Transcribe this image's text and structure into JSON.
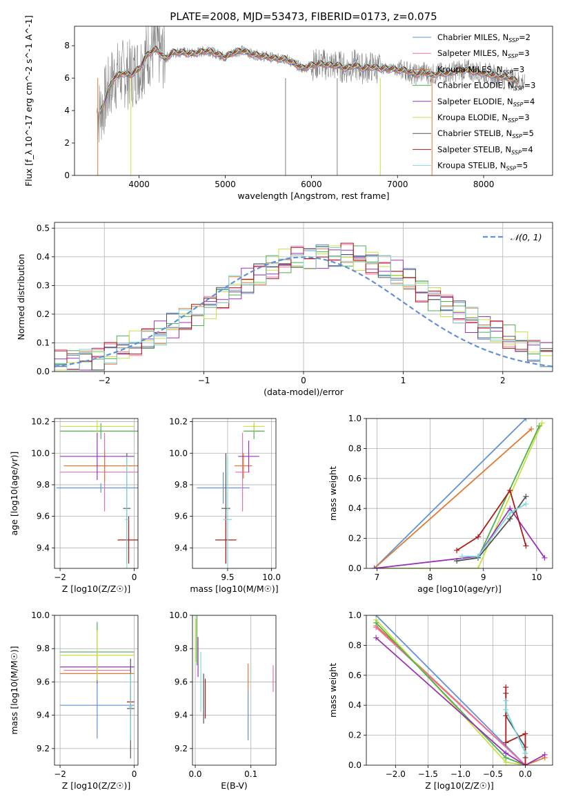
{
  "figure_title": "PLATE=2008, MJD=53473, FIBERID=0173, z=0.075",
  "colors": {
    "grey": "#808080",
    "orange": "#e07830",
    "pink": "#f06ea8",
    "green": "#4caf50",
    "purple": "#9a32b8",
    "yellow": "#c8e040",
    "darkgrey": "#555555",
    "red": "#b01818",
    "cyan": "#7dd8e0",
    "blue": "#6090d8"
  },
  "chart_data": [
    {
      "id": "spectrum",
      "type": "line",
      "xlabel": "wavelength [Angstrom, rest frame]",
      "ylabel": "Flux [f_λ 10^-17 erg cm^-2 s^-1 A^-1]",
      "xlim": [
        3250,
        8800
      ],
      "ylim": [
        0,
        9.2
      ],
      "xticks": [
        4000,
        5000,
        6000,
        7000,
        8000
      ],
      "yticks": [
        0,
        2,
        4,
        6,
        8
      ],
      "legend_position": "upper-right",
      "model_points_x": [
        3550,
        3600,
        3700,
        3800,
        3900,
        4000,
        4100,
        4200,
        4300,
        4400,
        4500,
        4600,
        4700,
        4800,
        4900,
        5000,
        5100,
        5200,
        5300,
        5400,
        5500,
        5600,
        5700,
        5800,
        5900,
        6000,
        6100,
        6200,
        6300,
        6400,
        6500,
        6600,
        6700,
        6800,
        6900,
        7000,
        7100,
        7200,
        7300,
        7400,
        7500,
        7600,
        7700,
        7800,
        7900,
        8000,
        8100,
        8200,
        8300,
        8400
      ],
      "model_points_y": [
        3.9,
        4.6,
        6.0,
        6.3,
        6.2,
        6.6,
        7.5,
        7.8,
        7.2,
        7.6,
        7.6,
        7.5,
        7.6,
        7.7,
        7.5,
        7.3,
        7.6,
        7.7,
        7.5,
        7.4,
        7.3,
        7.2,
        7.2,
        6.9,
        6.6,
        6.8,
        6.9,
        6.8,
        6.8,
        6.6,
        6.8,
        6.6,
        6.7,
        6.6,
        6.6,
        6.5,
        6.5,
        6.2,
        6.4,
        6.2,
        6.3,
        6.3,
        6.5,
        6.5,
        6.4,
        6.3,
        6.2,
        6.1,
        6.0,
        5.8
      ],
      "series": [
        {
          "name": "Chabrier MILES, N_SSP=2",
          "color": "#6090d8"
        },
        {
          "name": "Salpeter MILES, N_SSP=3",
          "color": "#f06ea8"
        },
        {
          "name": "Kroupa MILES, N_SSP=3",
          "color": "#e07830"
        },
        {
          "name": "Chabrier ELODIE, N_SSP=3",
          "color": "#4caf50"
        },
        {
          "name": "Salpeter ELODIE, N_SSP=4",
          "color": "#9a32b8"
        },
        {
          "name": "Kroupa ELODIE, N_SSP=3",
          "color": "#c8e040"
        },
        {
          "name": "Chabrier STELIB, N_SSP=5",
          "color": "#555555"
        },
        {
          "name": "Salpeter STELIB, N_SSP=4",
          "color": "#b01818"
        },
        {
          "name": "Kroupa STELIB, N_SSP=5",
          "color": "#7dd8e0"
        }
      ],
      "legend": [
        {
          "label": "Chabrier MILES, N",
          "sub": "SSP",
          "tail": "=2"
        },
        {
          "label": "Salpeter MILES, N",
          "sub": "SSP",
          "tail": "=3"
        },
        {
          "label": "Kroupa MILES, N",
          "sub": "SSP",
          "tail": "=3"
        },
        {
          "label": "Chabrier ELODIE, N",
          "sub": "SSP",
          "tail": "=3"
        },
        {
          "label": "Salpeter ELODIE, N",
          "sub": "SSP",
          "tail": "=4"
        },
        {
          "label": "Kroupa ELODIE, N",
          "sub": "SSP",
          "tail": "=3"
        },
        {
          "label": "Chabrier STELIB, N",
          "sub": "SSP",
          "tail": "=5"
        },
        {
          "label": "Salpeter STELIB, N",
          "sub": "SSP",
          "tail": "=4"
        },
        {
          "label": "Kroupa STELIB, N",
          "sub": "SSP",
          "tail": "=5"
        }
      ]
    },
    {
      "id": "residuals",
      "type": "histogram",
      "xlabel": "(data-model)/error",
      "ylabel": "Normed distribution",
      "xlim": [
        -2.5,
        2.5
      ],
      "ylim": [
        0,
        0.52
      ],
      "xticks": [
        -2,
        -1,
        0,
        1,
        2
      ],
      "yticks": [
        0.0,
        0.1,
        0.2,
        0.3,
        0.4,
        0.5
      ],
      "grid": true,
      "normal_curve_label": "𝒩(0, 1)",
      "bin_centers": [
        -2.4,
        -2.2,
        -2.0,
        -1.8,
        -1.6,
        -1.4,
        -1.2,
        -1.0,
        -0.8,
        -0.6,
        -0.4,
        -0.2,
        0.0,
        0.2,
        0.4,
        0.6,
        0.8,
        1.0,
        1.2,
        1.4,
        1.6,
        1.8,
        2.0,
        2.2,
        2.4
      ],
      "bin_values": [
        0.02,
        0.035,
        0.04,
        0.055,
        0.075,
        0.1,
        0.14,
        0.2,
        0.26,
        0.3,
        0.34,
        0.37,
        0.4,
        0.42,
        0.41,
        0.38,
        0.34,
        0.29,
        0.24,
        0.19,
        0.15,
        0.11,
        0.08,
        0.06,
        0.045
      ]
    },
    {
      "id": "age-vs-Z",
      "type": "errorbar",
      "xlabel": "Z [log10(Z/Z☉)]",
      "ylabel": "age [log10(age/yr)]",
      "xlim": [
        -2.15,
        0.1
      ],
      "ylim": [
        9.27,
        10.22
      ],
      "xticks": [
        -2,
        0
      ],
      "yticks": [
        9.4,
        9.6,
        9.8,
        10.0,
        10.2
      ],
      "points": [
        {
          "x": -0.9,
          "y": 9.78,
          "xerr": 1.2,
          "yerr": 0.03,
          "color": "#6090d8"
        },
        {
          "x": -0.8,
          "y": 9.88,
          "xerr": 1.2,
          "yerr": 0.25,
          "color": "#f06ea8"
        },
        {
          "x": -0.8,
          "y": 9.92,
          "xerr": 1.1,
          "yerr": 0.1,
          "color": "#e07830"
        },
        {
          "x": -1.0,
          "y": 9.98,
          "xerr": 1.0,
          "yerr": 0.15,
          "color": "#9a32b8"
        },
        {
          "x": -0.9,
          "y": 10.14,
          "xerr": 1.1,
          "yerr": 0.05,
          "color": "#4caf50"
        },
        {
          "x": -1.0,
          "y": 10.17,
          "xerr": 1.0,
          "yerr": 0.04,
          "color": "#c8e040"
        },
        {
          "x": -0.2,
          "y": 9.65,
          "xerr": 0.1,
          "yerr": 0.35,
          "color": "#555555"
        },
        {
          "x": -0.15,
          "y": 9.45,
          "xerr": 0.3,
          "yerr": 0.15,
          "color": "#b01818"
        },
        {
          "x": -0.2,
          "y": 9.58,
          "xerr": 0.05,
          "yerr": 0.4,
          "color": "#7dd8e0"
        }
      ]
    },
    {
      "id": "age-vs-mass",
      "type": "errorbar",
      "xlabel": "mass [log10(M/M☉)]",
      "ylabel": "",
      "xlim": [
        9.1,
        10.05
      ],
      "ylim": [
        9.27,
        10.22
      ],
      "xticks": [
        9.5,
        10.0
      ],
      "yticks": [
        9.4,
        9.6,
        9.8,
        10.0,
        10.2
      ],
      "points": [
        {
          "x": 9.45,
          "y": 9.78,
          "xerr": 0.3,
          "yerr": 0.1,
          "color": "#6090d8"
        },
        {
          "x": 9.67,
          "y": 9.88,
          "xerr": 0.08,
          "yerr": 0.25,
          "color": "#f06ea8"
        },
        {
          "x": 9.68,
          "y": 9.92,
          "xerr": 0.1,
          "yerr": 0.08,
          "color": "#e07830"
        },
        {
          "x": 9.74,
          "y": 9.98,
          "xerr": 0.12,
          "yerr": 0.1,
          "color": "#9a32b8"
        },
        {
          "x": 9.8,
          "y": 10.14,
          "xerr": 0.12,
          "yerr": 0.05,
          "color": "#4caf50"
        },
        {
          "x": 9.8,
          "y": 10.17,
          "xerr": 0.12,
          "yerr": 0.03,
          "color": "#c8e040"
        },
        {
          "x": 9.48,
          "y": 9.65,
          "xerr": 0.05,
          "yerr": 0.35,
          "color": "#555555"
        },
        {
          "x": 9.48,
          "y": 9.45,
          "xerr": 0.12,
          "yerr": 0.15,
          "color": "#b01818"
        },
        {
          "x": 9.5,
          "y": 9.58,
          "xerr": 0.05,
          "yerr": 0.4,
          "color": "#7dd8e0"
        }
      ]
    },
    {
      "id": "weight-vs-age",
      "type": "line",
      "xlabel": "age [log10(age/yr)]",
      "ylabel": "mass weight",
      "xlim": [
        6.8,
        10.3
      ],
      "ylim": [
        0,
        1.0
      ],
      "xticks": [
        7,
        8,
        9,
        10
      ],
      "yticks": [
        0.0,
        0.2,
        0.4,
        0.6,
        0.8,
        1.0
      ],
      "series": [
        {
          "color": "#6090d8",
          "points": [
            [
              6.95,
              0.0
            ],
            [
              9.8,
              1.0
            ]
          ]
        },
        {
          "color": "#e07830",
          "points": [
            [
              6.95,
              0.0
            ],
            [
              9.9,
              0.93
            ]
          ]
        },
        {
          "color": "#c8e040",
          "points": [
            [
              6.95,
              0.0
            ],
            [
              8.9,
              0.0
            ],
            [
              10.1,
              0.97
            ]
          ]
        },
        {
          "color": "#4caf50",
          "points": [
            [
              8.5,
              0.05
            ],
            [
              8.9,
              0.07
            ],
            [
              10.05,
              0.95
            ]
          ]
        },
        {
          "color": "#9a32b8",
          "points": [
            [
              6.95,
              0.0
            ],
            [
              8.9,
              0.08
            ],
            [
              9.5,
              0.4
            ],
            [
              10.15,
              0.07
            ]
          ]
        },
        {
          "color": "#555555",
          "points": [
            [
              8.5,
              0.05
            ],
            [
              8.9,
              0.07
            ],
            [
              9.5,
              0.33
            ],
            [
              9.8,
              0.48
            ]
          ]
        },
        {
          "color": "#b01818",
          "points": [
            [
              8.5,
              0.12
            ],
            [
              8.9,
              0.21
            ],
            [
              9.5,
              0.52
            ],
            [
              9.8,
              0.15
            ]
          ]
        },
        {
          "color": "#7dd8e0",
          "points": [
            [
              8.6,
              0.08
            ],
            [
              8.9,
              0.08
            ],
            [
              9.5,
              0.37
            ],
            [
              9.8,
              0.43
            ]
          ]
        }
      ]
    },
    {
      "id": "mass-vs-Z",
      "type": "errorbar",
      "xlabel": "Z [log10(Z/Z☉)]",
      "ylabel": "mass [log10(M/M☉)]",
      "xlim": [
        -2.15,
        0.1
      ],
      "ylim": [
        9.1,
        10.0
      ],
      "xticks": [
        -2,
        0
      ],
      "yticks": [
        9.2,
        9.4,
        9.6,
        9.8,
        10.0
      ],
      "points": [
        {
          "x": -1.0,
          "y": 9.46,
          "xerr": 1.0,
          "yerr": 0.2,
          "color": "#6090d8"
        },
        {
          "x": -1.0,
          "y": 9.65,
          "xerr": 1.0,
          "yerr": 0.05,
          "color": "#e07830"
        },
        {
          "x": -1.0,
          "y": 9.67,
          "xerr": 0.9,
          "yerr": 0.04,
          "color": "#f06ea8"
        },
        {
          "x": -1.0,
          "y": 9.69,
          "xerr": 1.0,
          "yerr": 0.1,
          "color": "#9a32b8"
        },
        {
          "x": -1.0,
          "y": 9.78,
          "xerr": 1.0,
          "yerr": 0.18,
          "color": "#4caf50"
        },
        {
          "x": -1.0,
          "y": 9.76,
          "xerr": 1.0,
          "yerr": 0.15,
          "color": "#c8e040"
        },
        {
          "x": -0.1,
          "y": 9.44,
          "xerr": 0.1,
          "yerr": 0.3,
          "color": "#555555"
        },
        {
          "x": -0.1,
          "y": 9.48,
          "xerr": 0.1,
          "yerr": 0.08,
          "color": "#b01818"
        },
        {
          "x": -0.1,
          "y": 9.45,
          "xerr": 0.05,
          "yerr": 0.2,
          "color": "#7dd8e0"
        }
      ]
    },
    {
      "id": "mass-vs-ebv",
      "type": "errorbar",
      "xlabel": "E(B-V)",
      "ylabel": "",
      "xlim": [
        -0.005,
        0.145
      ],
      "ylim": [
        9.1,
        10.0
      ],
      "xticks": [
        0.0,
        0.1
      ],
      "yticks": [
        9.2,
        9.4,
        9.6,
        9.8,
        10.0
      ],
      "points": [
        {
          "x": 0.095,
          "y": 9.4,
          "xerr": 0,
          "yerr": 0.15,
          "color": "#6090d8"
        },
        {
          "x": 0.095,
          "y": 9.63,
          "xerr": 0,
          "yerr": 0.08,
          "color": "#e07830"
        },
        {
          "x": 0.14,
          "y": 9.62,
          "xerr": 0,
          "yerr": 0.08,
          "color": "#f06ea8"
        },
        {
          "x": 0.005,
          "y": 9.75,
          "xerr": 0,
          "yerr": 0.12,
          "color": "#9a32b8"
        },
        {
          "x": 0.003,
          "y": 9.85,
          "xerr": 0,
          "yerr": 0.15,
          "color": "#4caf50"
        },
        {
          "x": 0.001,
          "y": 9.85,
          "xerr": 0,
          "yerr": 0.13,
          "color": "#c8e040"
        },
        {
          "x": 0.015,
          "y": 9.5,
          "xerr": 0,
          "yerr": 0.15,
          "color": "#555555"
        },
        {
          "x": 0.018,
          "y": 9.5,
          "xerr": 0,
          "yerr": 0.12,
          "color": "#b01818"
        },
        {
          "x": 0.01,
          "y": 9.6,
          "xerr": 0,
          "yerr": 0.18,
          "color": "#7dd8e0"
        }
      ]
    },
    {
      "id": "weight-vs-Z",
      "type": "line",
      "xlabel": "Z [log10(Z/Z☉)]",
      "ylabel": "mass weight",
      "xlim": [
        -2.45,
        0.42
      ],
      "ylim": [
        0,
        1.0
      ],
      "xticks": [
        -2.0,
        -1.5,
        -1.0,
        -0.5,
        0.0
      ],
      "yticks": [
        0.0,
        0.2,
        0.4,
        0.6,
        0.8,
        1.0
      ],
      "series": [
        {
          "color": "#6090d8",
          "points": [
            [
              -2.3,
              1.0
            ],
            [
              0.0,
              0.0
            ]
          ]
        },
        {
          "color": "#e07830",
          "points": [
            [
              -2.3,
              0.93
            ],
            [
              0.0,
              0.0
            ],
            [
              0.3,
              0.05
            ]
          ]
        },
        {
          "color": "#f06ea8",
          "points": [
            [
              -2.3,
              0.92
            ],
            [
              0.0,
              0.0
            ]
          ]
        },
        {
          "color": "#c8e040",
          "points": [
            [
              -2.3,
              0.97
            ],
            [
              -0.3,
              0.02
            ],
            [
              0.0,
              0.0
            ]
          ]
        },
        {
          "color": "#4caf50",
          "points": [
            [
              -2.3,
              0.95
            ],
            [
              -0.3,
              0.05
            ],
            [
              0.0,
              0.0
            ]
          ]
        },
        {
          "color": "#9a32b8",
          "points": [
            [
              -2.3,
              0.85
            ],
            [
              -0.3,
              0.08
            ],
            [
              0.0,
              0.0
            ],
            [
              0.3,
              0.07
            ]
          ]
        },
        {
          "color": "#555555",
          "points": [
            [
              -0.3,
              0.48
            ],
            [
              -0.3,
              0.33
            ],
            [
              0.0,
              0.12
            ],
            [
              0.0,
              0.05
            ]
          ]
        },
        {
          "color": "#b01818",
          "points": [
            [
              -0.3,
              0.52
            ],
            [
              -0.3,
              0.15
            ],
            [
              0.0,
              0.21
            ],
            [
              0.0,
              0.0
            ]
          ]
        },
        {
          "color": "#7dd8e0",
          "points": [
            [
              -0.3,
              0.43
            ],
            [
              -0.3,
              0.37
            ],
            [
              0.0,
              0.08
            ],
            [
              0.0,
              0.08
            ]
          ]
        }
      ]
    }
  ]
}
